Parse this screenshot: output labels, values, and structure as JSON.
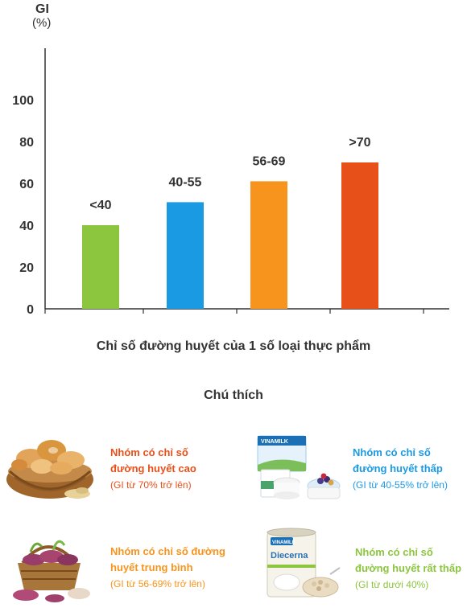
{
  "chart_data": {
    "type": "bar",
    "ylabel_line1": "GI",
    "ylabel_line2": "(%)",
    "categories": [
      "<40",
      "40-55",
      "56-69",
      ">70"
    ],
    "values": [
      40,
      51,
      61,
      70
    ],
    "data_labels": [
      "<40",
      "40-55",
      "56-69",
      ">70"
    ],
    "colors": [
      "#8cc63f",
      "#1b9ae4",
      "#f7941d",
      "#e8501a"
    ],
    "ylim": [
      0,
      120
    ],
    "yticks": [
      0,
      20,
      40,
      60,
      80,
      100
    ],
    "grid": false,
    "xlabel": "Chỉ số đường huyết của 1 số loại thực phẩm"
  },
  "legend": {
    "title": "Chú thích",
    "items": [
      {
        "title": "Nhóm có chỉ số đường huyết cao",
        "range": "(GI từ 70% trở lên)",
        "color": "#e8501a",
        "icon": "bread-basket-image"
      },
      {
        "title": "Nhóm có chỉ số đường huyết thấp",
        "range": "(GI từ 40-55% trở lên)",
        "color": "#1b9ae4",
        "icon": "yogurt-image"
      },
      {
        "title": "Nhóm có chỉ số đường huyết trung bình",
        "range": "(GI từ 56-69% trở lên)",
        "color": "#f7941d",
        "icon": "sweet-potato-basket-image"
      },
      {
        "title": "Nhóm có chỉ số đường huyết rất thấp",
        "range": "(GI từ dưới 40%)",
        "color": "#8cc63f",
        "icon": "diecerna-milk-image"
      }
    ]
  }
}
